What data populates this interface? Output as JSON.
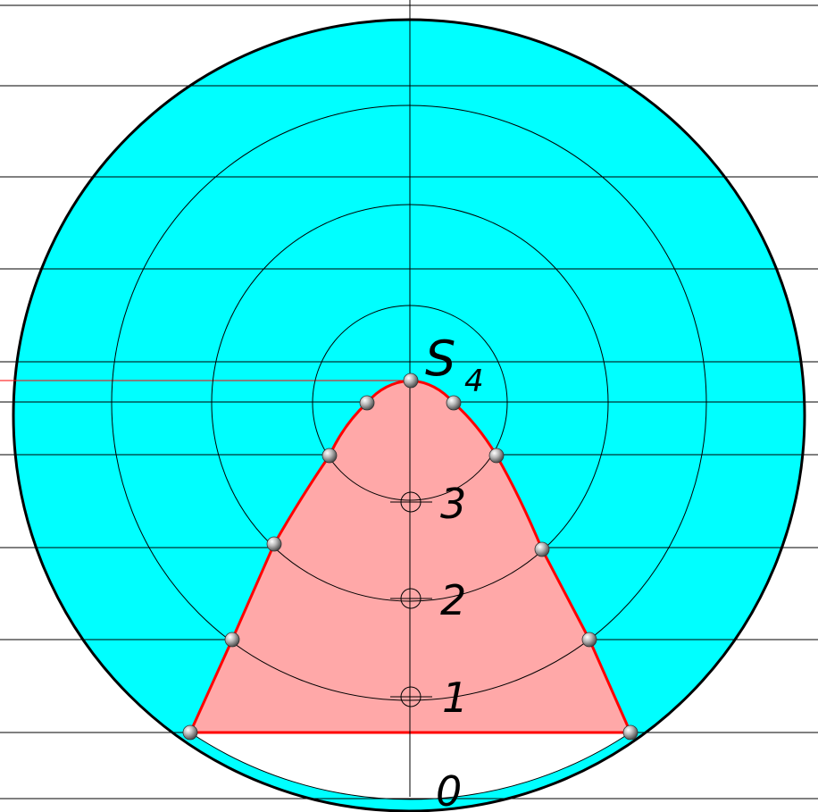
{
  "labels": {
    "apex": "S",
    "apex_index": "4",
    "level_3": "3",
    "level_2": "2",
    "level_1": "1",
    "level_0": "0"
  },
  "colors": {
    "disc_fill": "#00ffff",
    "section_fill": "#ffa8a8",
    "section_outline": "#ff0000",
    "construction_line": "#000000",
    "outer_circle": "#000000",
    "point_marker": "#9a9a9a"
  }
}
